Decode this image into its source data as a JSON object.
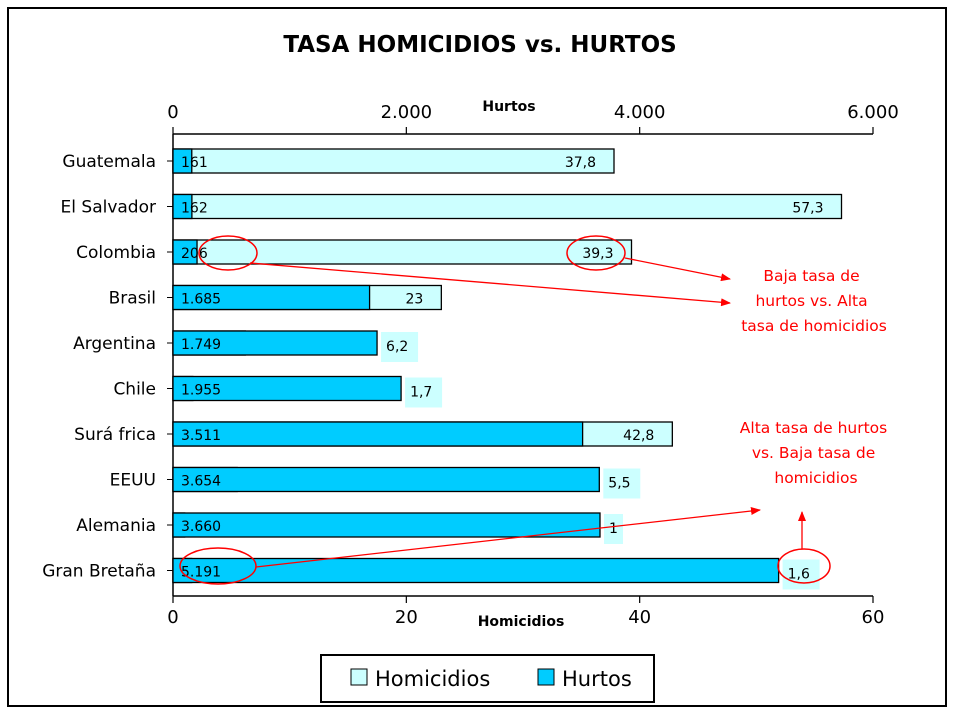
{
  "chart_data": {
    "type": "bar",
    "orientation": "horizontal",
    "title": "TASA HOMICIDIOS vs. HURTOS",
    "categories": [
      "Guatemala",
      "El Salvador",
      "Colombia",
      "Brasil",
      "Argentina",
      "Chile",
      "Surafrica",
      "EEUU",
      "Alemania",
      "Gran Bretaña"
    ],
    "category_labels": [
      "Guatemala",
      "El Salvador",
      "Colombia",
      "Brasil",
      "Argentina",
      "Chile",
      "Surá frica",
      "EEUU",
      "Alemania",
      "Gran Bretaña"
    ],
    "series": [
      {
        "name": "Homicidios",
        "color": "#ccffff",
        "axis": "bottom",
        "values": [
          37.8,
          57.3,
          39.3,
          23,
          6.2,
          1.7,
          42.8,
          5.5,
          1,
          1.6
        ],
        "labels": [
          "37,8",
          "57,3",
          "39,3",
          "23",
          "6,2",
          "1,7",
          "42,8",
          "5,5",
          "1",
          "1,6"
        ]
      },
      {
        "name": "Hurtos",
        "color": "#00ccff",
        "axis": "top",
        "values": [
          161,
          162,
          206,
          1685,
          1749,
          1955,
          3511,
          3654,
          3660,
          5191
        ],
        "labels": [
          "161",
          "162",
          "206",
          "1.685",
          "1.749",
          "1.955",
          "3.511",
          "3.654",
          "3.660",
          "5.191"
        ]
      }
    ],
    "top_axis": {
      "label": "Hurtos",
      "range": [
        0,
        6000
      ],
      "ticks": [
        "0",
        "2.000",
        "4.000",
        "6.000"
      ]
    },
    "bottom_axis": {
      "label": "Homicidios",
      "range": [
        0,
        60
      ],
      "ticks": [
        "0",
        "20",
        "40",
        "60"
      ]
    },
    "legend": {
      "position": "bottom",
      "entries": [
        "Homicidios",
        "Hurtos"
      ]
    },
    "annotations": [
      {
        "lines": [
          "Baja tasa de",
          "hurtos vs. Alta",
          "tasa de homicidios"
        ],
        "color": "#ff0000"
      },
      {
        "lines": [
          "Alta tasa de hurtos",
          "vs. Baja tasa de",
          "homicidios"
        ],
        "color": "#ff0000"
      }
    ]
  }
}
